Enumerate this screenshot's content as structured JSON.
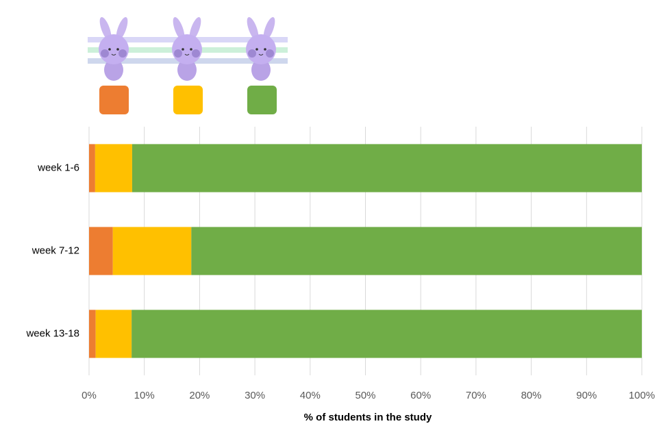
{
  "chart_data": {
    "type": "stacked-bar-horizontal",
    "x_label": "% of students in the study",
    "categories": [
      "week 1-6",
      "week 7-12",
      "week 13-18"
    ],
    "series": [
      {
        "color": "#ed7d31",
        "values": [
          1.1,
          4.3,
          1.2
        ]
      },
      {
        "color": "#ffc000",
        "values": [
          6.7,
          14.2,
          6.5
        ]
      },
      {
        "color": "#70ad47",
        "values": [
          92.2,
          81.5,
          92.3
        ]
      }
    ],
    "xlim": [
      0,
      100
    ],
    "xticks": [
      {
        "value": 0,
        "label": "0%"
      },
      {
        "value": 10,
        "label": "10%"
      },
      {
        "value": 20,
        "label": "20%"
      },
      {
        "value": 30,
        "label": "30%"
      },
      {
        "value": 40,
        "label": "40%"
      },
      {
        "value": 50,
        "label": "50%"
      },
      {
        "value": 60,
        "label": "60%"
      },
      {
        "value": 70,
        "label": "70%"
      },
      {
        "value": 80,
        "label": "80%"
      },
      {
        "value": 90,
        "label": "90%"
      },
      {
        "value": 100,
        "label": "100%"
      }
    ],
    "grid": true
  }
}
